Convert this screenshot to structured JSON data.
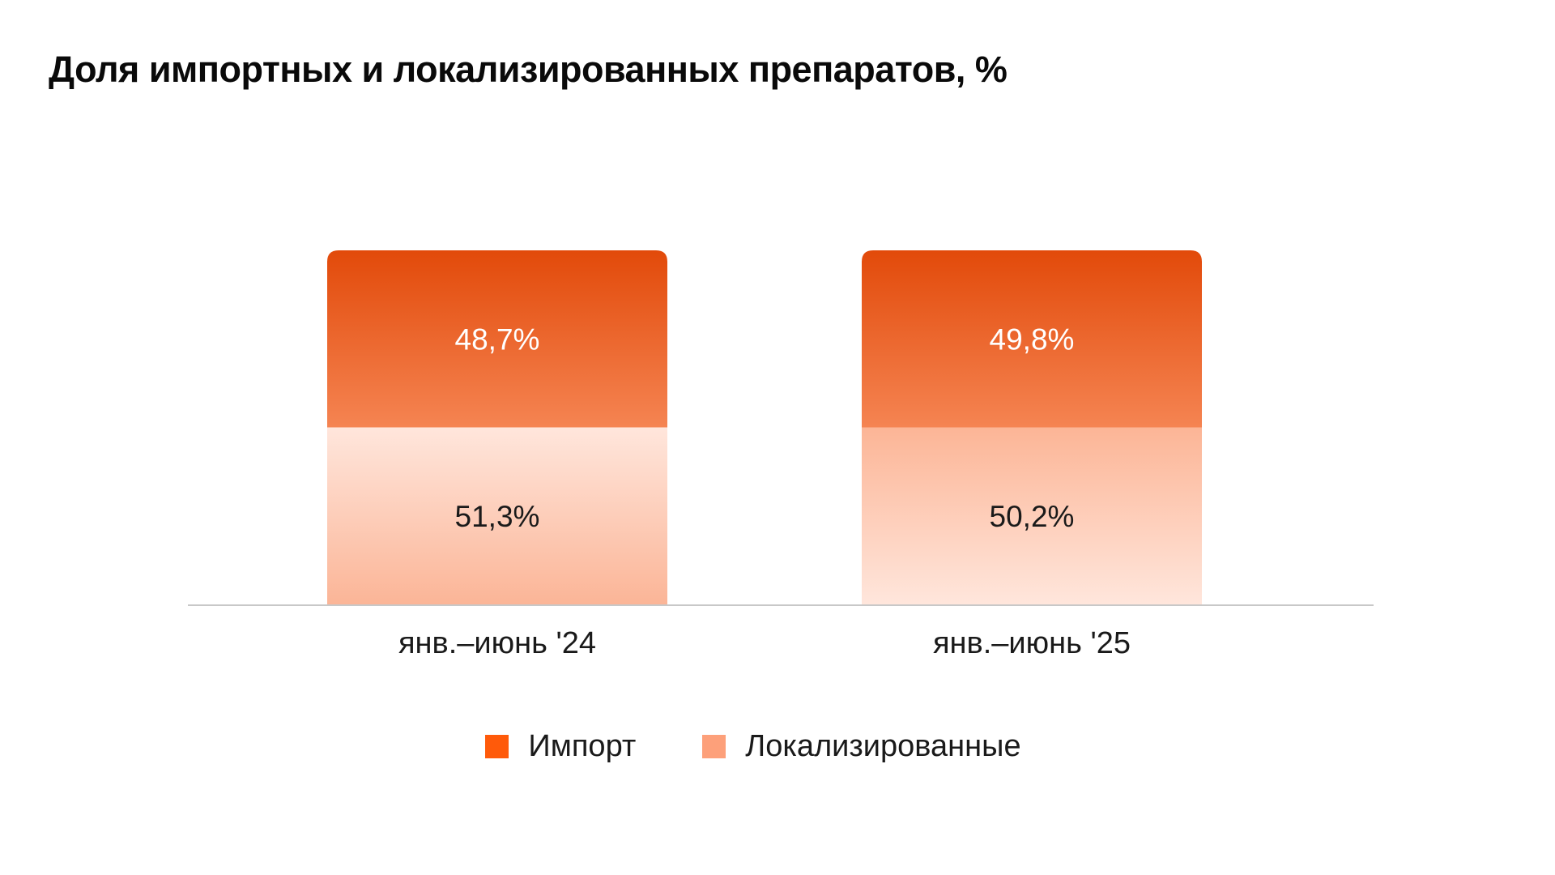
{
  "chart_data": {
    "type": "bar",
    "stacked": true,
    "title": "Доля импортных и локализированных препаратов, %",
    "xlabel": "",
    "ylabel": "",
    "ylim": [
      0,
      100
    ],
    "grid": false,
    "legend_position": "bottom",
    "categories": [
      "янв.–июнь '24",
      "янв.–июнь '25"
    ],
    "series": [
      {
        "name": "Локализированные",
        "values": [
          51.3,
          50.2
        ],
        "labels": [
          "51,3%",
          "50,2%"
        ],
        "color": "#fda07a"
      },
      {
        "name": "Импорт",
        "values": [
          48.7,
          49.8
        ],
        "labels": [
          "48,7%",
          "49,8%"
        ],
        "color": "#ff5a0a"
      }
    ]
  }
}
